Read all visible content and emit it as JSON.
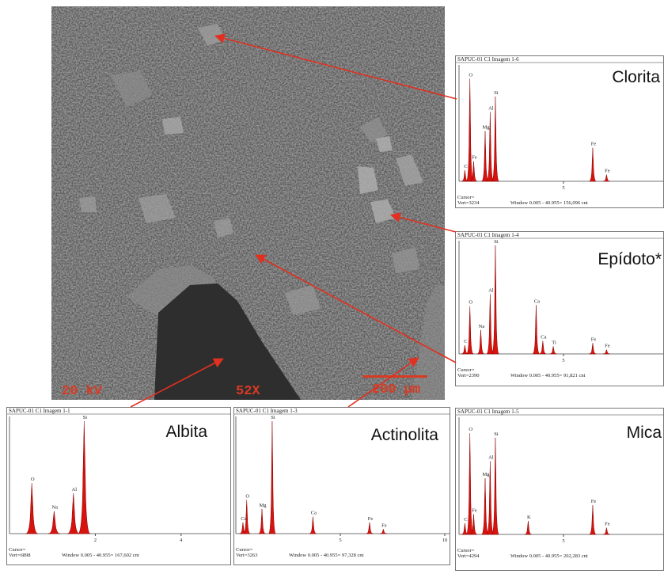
{
  "image": {
    "labels": [
      "20 kV",
      "52X",
      "200 µm"
    ]
  },
  "panels": [
    {
      "header": "SAPUC-01 C1 Imagem 1-6",
      "name": "Clorita",
      "ticks": [
        5
      ],
      "cursor": "Cursor=",
      "vert": "Vert=3234",
      "window": "Window 0.005 - 40.955= 156,096 cnt",
      "peaks": [
        {
          "element": "C",
          "kev": 0.28,
          "height": 10
        },
        {
          "element": "O",
          "kev": 0.52,
          "height": 92
        },
        {
          "element": "Fe",
          "kev": 0.7,
          "height": 18
        },
        {
          "element": "Mg",
          "kev": 1.25,
          "height": 45
        },
        {
          "element": "Al",
          "kev": 1.49,
          "height": 62
        },
        {
          "element": "Si",
          "kev": 1.74,
          "height": 76
        },
        {
          "element": "Fe",
          "kev": 6.4,
          "height": 30
        },
        {
          "element": "Fe",
          "kev": 7.06,
          "height": 6
        }
      ]
    },
    {
      "header": "SAPUC-01 C1 Imagem 1-4",
      "name": "Epídoto*",
      "ticks": [
        5
      ],
      "cursor": "Cursor=",
      "vert": "Vert=2390",
      "window": "Window 0.005 - 40.955= 91,821 cnt",
      "peaks": [
        {
          "element": "C",
          "kev": 0.28,
          "height": 8
        },
        {
          "element": "O",
          "kev": 0.52,
          "height": 44
        },
        {
          "element": "Na",
          "kev": 1.04,
          "height": 22
        },
        {
          "element": "Al",
          "kev": 1.49,
          "height": 55
        },
        {
          "element": "Si",
          "kev": 1.74,
          "height": 100
        },
        {
          "element": "Ca",
          "kev": 3.69,
          "height": 45
        },
        {
          "element": "Ca",
          "kev": 4.01,
          "height": 12
        },
        {
          "element": "Ti",
          "kev": 4.51,
          "height": 7
        },
        {
          "element": "Fe",
          "kev": 6.4,
          "height": 10
        },
        {
          "element": "Fe",
          "kev": 7.06,
          "height": 4
        }
      ]
    },
    {
      "header": "SAPUC-01 C1 Imagem 1-5",
      "name": "Mica",
      "ticks": [
        5
      ],
      "cursor": "Cursor=",
      "vert": "Vert=4294",
      "window": "Window 0.005 - 40.955= 202,283 cnt",
      "peaks": [
        {
          "element": "C",
          "kev": 0.28,
          "height": 10
        },
        {
          "element": "O",
          "kev": 0.52,
          "height": 90
        },
        {
          "element": "Fe",
          "kev": 0.7,
          "height": 18
        },
        {
          "element": "Mg",
          "kev": 1.25,
          "height": 50
        },
        {
          "element": "Al",
          "kev": 1.49,
          "height": 65
        },
        {
          "element": "Si",
          "kev": 1.74,
          "height": 86
        },
        {
          "element": "K",
          "kev": 3.31,
          "height": 12
        },
        {
          "element": "Fe",
          "kev": 6.4,
          "height": 26
        },
        {
          "element": "Fe",
          "kev": 7.06,
          "height": 6
        }
      ]
    },
    {
      "header": "SAPUC-01 C1 Imagem 1-1",
      "name": "Albita",
      "ticks": [
        2,
        4
      ],
      "cursor": "Cursor=",
      "vert": "Vert=6898",
      "window": "Window 0.005 - 40.955= 167,602 cnt",
      "peaks": [
        {
          "element": "O",
          "kev": 0.52,
          "height": 45
        },
        {
          "element": "Na",
          "kev": 1.04,
          "height": 20
        },
        {
          "element": "Al",
          "kev": 1.49,
          "height": 36
        },
        {
          "element": "Si",
          "kev": 1.74,
          "height": 100
        }
      ]
    },
    {
      "header": "SAPUC-01 C1 Imagem 1-3",
      "name": "Actinolita",
      "ticks": [
        5,
        10
      ],
      "cursor": "Cursor=",
      "vert": "Vert=3263",
      "window": "Window 0.005 - 40.955= 97,328 cnt",
      "peaks": [
        {
          "element": "Ca",
          "kev": 0.34,
          "height": 10
        },
        {
          "element": "O",
          "kev": 0.52,
          "height": 30
        },
        {
          "element": "Mg",
          "kev": 1.25,
          "height": 22
        },
        {
          "element": "Si",
          "kev": 1.74,
          "height": 100
        },
        {
          "element": "Ca",
          "kev": 3.69,
          "height": 15
        },
        {
          "element": "Fe",
          "kev": 6.4,
          "height": 10
        },
        {
          "element": "Fe",
          "kev": 7.06,
          "height": 4
        }
      ]
    }
  ]
}
